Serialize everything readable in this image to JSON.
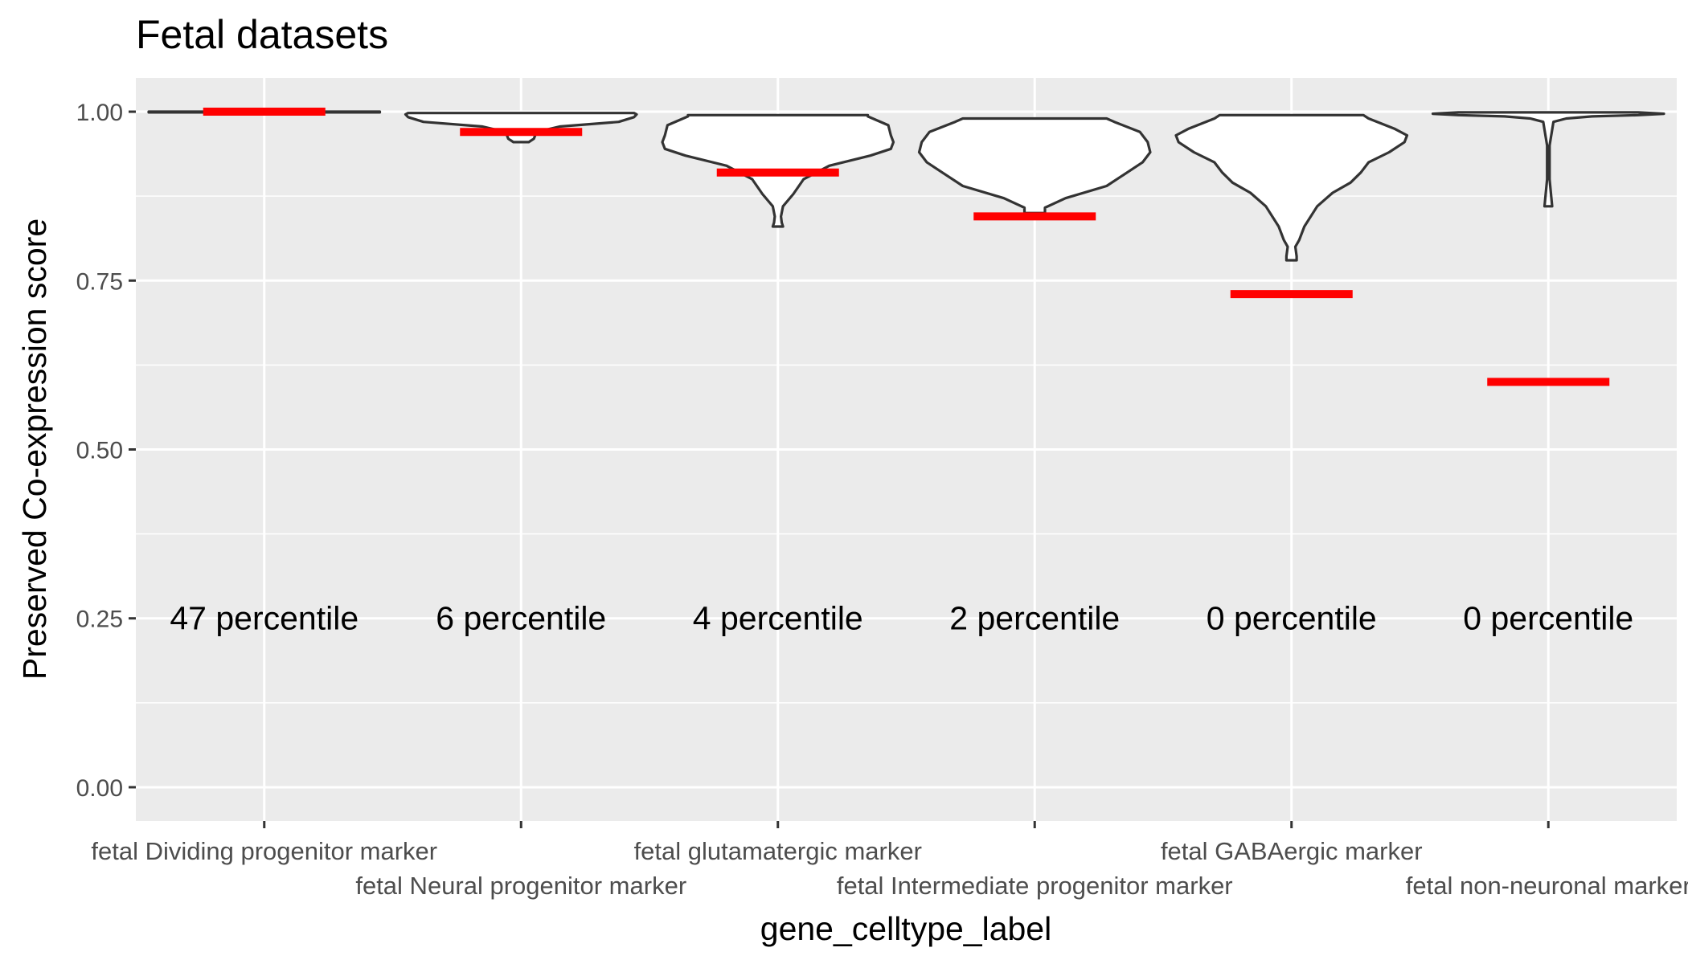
{
  "chart_data": {
    "type": "violin",
    "title": "Fetal datasets",
    "xlabel": "gene_celltype_label",
    "ylabel": "Preserved Co-expression score",
    "ylim": [
      -0.05,
      1.05
    ],
    "y_ticks": [
      "0.00",
      "0.25",
      "0.50",
      "0.75",
      "1.00"
    ],
    "grid": true,
    "background_color": "#ebebeb",
    "violin_fill": "#ffffff",
    "violin_outline": "#333333",
    "marker_color": "#ff0000",
    "categories": [
      "fetal Dividing progenitor marker",
      "fetal Neural progenitor marker",
      "fetal glutamatergic marker",
      "fetal Intermediate progenitor marker",
      "fetal GABAergic marker",
      "fetal non-neuronal marker"
    ],
    "red_line_values": [
      1.0,
      0.97,
      0.91,
      0.845,
      0.73,
      0.6
    ],
    "percentile_labels": [
      "47 percentile",
      "6 percentile",
      "4 percentile",
      "2 percentile",
      "0 percentile",
      "0 percentile"
    ],
    "percentile_label_y": 0.25,
    "violins": [
      {
        "min": 0.999,
        "max": 1.0,
        "profile": [
          [
            0.999,
            0.45
          ],
          [
            1.0,
            0.45
          ]
        ]
      },
      {
        "min": 0.955,
        "max": 0.998,
        "profile": [
          [
            0.955,
            0.03
          ],
          [
            0.96,
            0.05
          ],
          [
            0.97,
            0.06
          ],
          [
            0.978,
            0.15
          ],
          [
            0.985,
            0.38
          ],
          [
            0.992,
            0.44
          ],
          [
            0.996,
            0.45
          ],
          [
            0.998,
            0.44
          ]
        ]
      },
      {
        "min": 0.83,
        "max": 0.995,
        "profile": [
          [
            0.83,
            0.02
          ],
          [
            0.836,
            0.015
          ],
          [
            0.845,
            0.012
          ],
          [
            0.86,
            0.02
          ],
          [
            0.878,
            0.06
          ],
          [
            0.9,
            0.1
          ],
          [
            0.92,
            0.2
          ],
          [
            0.935,
            0.36
          ],
          [
            0.945,
            0.44
          ],
          [
            0.955,
            0.45
          ],
          [
            0.965,
            0.44
          ],
          [
            0.98,
            0.43
          ],
          [
            0.993,
            0.35
          ],
          [
            0.995,
            0.35
          ]
        ]
      },
      {
        "min": 0.85,
        "max": 0.99,
        "profile": [
          [
            0.85,
            0.04
          ],
          [
            0.858,
            0.04
          ],
          [
            0.872,
            0.12
          ],
          [
            0.89,
            0.28
          ],
          [
            0.91,
            0.36
          ],
          [
            0.925,
            0.42
          ],
          [
            0.94,
            0.45
          ],
          [
            0.955,
            0.44
          ],
          [
            0.97,
            0.41
          ],
          [
            0.985,
            0.31
          ],
          [
            0.99,
            0.28
          ]
        ]
      },
      {
        "min": 0.78,
        "max": 0.995,
        "profile": [
          [
            0.78,
            0.02
          ],
          [
            0.786,
            0.02
          ],
          [
            0.8,
            0.015
          ],
          [
            0.81,
            0.03
          ],
          [
            0.83,
            0.05
          ],
          [
            0.86,
            0.1
          ],
          [
            0.88,
            0.16
          ],
          [
            0.895,
            0.23
          ],
          [
            0.91,
            0.27
          ],
          [
            0.925,
            0.3
          ],
          [
            0.94,
            0.38
          ],
          [
            0.955,
            0.44
          ],
          [
            0.965,
            0.45
          ],
          [
            0.975,
            0.4
          ],
          [
            0.99,
            0.3
          ],
          [
            0.995,
            0.28
          ]
        ]
      },
      {
        "min": 0.86,
        "max": 0.999,
        "profile": [
          [
            0.86,
            0.015
          ],
          [
            0.9,
            0.005
          ],
          [
            0.95,
            0.005
          ],
          [
            0.985,
            0.02
          ],
          [
            0.99,
            0.07
          ],
          [
            0.993,
            0.17
          ],
          [
            0.995,
            0.35
          ],
          [
            0.997,
            0.45
          ],
          [
            0.999,
            0.35
          ]
        ]
      }
    ]
  }
}
